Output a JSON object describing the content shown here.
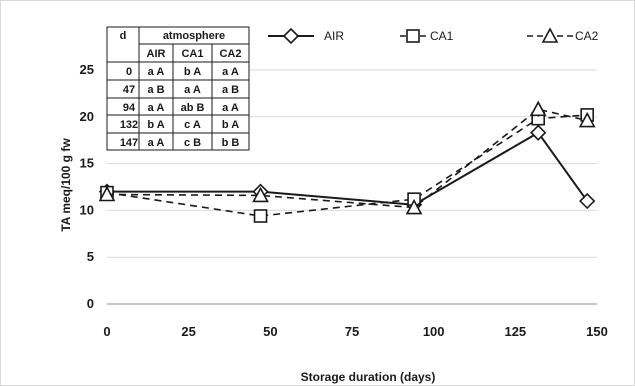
{
  "chart_data": {
    "type": "line",
    "xlabel": "Storage duration (days)",
    "ylabel": "TA meq/100 g fw",
    "xlim": [
      0,
      150
    ],
    "ylim": [
      0,
      25
    ],
    "x_ticks": [
      "0",
      "25",
      "50",
      "75",
      "100",
      "125",
      "150"
    ],
    "y_ticks": [
      "0",
      "5",
      "10",
      "15",
      "20",
      "25"
    ],
    "grid": "horizontal",
    "legend_position": "top",
    "series": [
      {
        "name": "AIR",
        "line_style": "solid",
        "marker": "diamond",
        "x": [
          0,
          47,
          94,
          132,
          147
        ],
        "y": [
          12.0,
          12.0,
          10.6,
          18.3,
          11.0
        ],
        "err": [
          0.5,
          0.7,
          0.4,
          0.8,
          0.7
        ]
      },
      {
        "name": "CA1",
        "line_style": "dash",
        "marker": "square",
        "x": [
          0,
          47,
          94,
          132,
          147
        ],
        "y": [
          11.9,
          9.4,
          11.2,
          19.8,
          20.2
        ],
        "err": [
          0.4,
          0.3,
          0.4,
          0.6,
          0.4
        ]
      },
      {
        "name": "CA2",
        "line_style": "dash",
        "marker": "triangle",
        "x": [
          0,
          47,
          94,
          132,
          147
        ],
        "y": [
          11.7,
          11.6,
          10.3,
          20.8,
          19.6
        ],
        "err": [
          0.4,
          0.4,
          0.3,
          0.8,
          0.5
        ]
      }
    ],
    "legend": [
      {
        "label": "AIR",
        "prefix": ""
      },
      {
        "label": "CA1",
        "prefix": "– "
      },
      {
        "label": "CA2",
        "prefix": "- -"
      }
    ],
    "table": {
      "header_d": "d",
      "header_group": "atmosphere",
      "columns": [
        "AIR",
        "CA1",
        "CA2"
      ],
      "rows": [
        {
          "d": "0",
          "cells": [
            "a A",
            "b A",
            "a A"
          ]
        },
        {
          "d": "47",
          "cells": [
            "a B",
            "a A",
            "a B"
          ]
        },
        {
          "d": "94",
          "cells": [
            "a A",
            "ab B",
            "a A"
          ]
        },
        {
          "d": "132",
          "cells": [
            "b A",
            "c A",
            "b A"
          ]
        },
        {
          "d": "147",
          "cells": [
            "a A",
            "c B",
            "b B"
          ]
        }
      ]
    }
  }
}
